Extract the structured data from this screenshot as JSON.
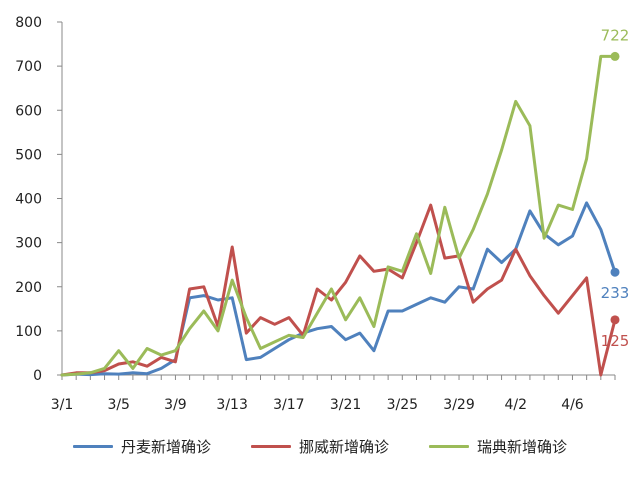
{
  "chart_data": {
    "type": "line",
    "title": "",
    "xlabel": "",
    "ylabel": "",
    "ylim": [
      0,
      800
    ],
    "yticks": [
      0,
      100,
      200,
      300,
      400,
      500,
      600,
      700,
      800
    ],
    "grid": false,
    "legend_position": "bottom",
    "x": [
      "3/1",
      "3/2",
      "3/3",
      "3/4",
      "3/5",
      "3/6",
      "3/7",
      "3/8",
      "3/9",
      "3/10",
      "3/11",
      "3/12",
      "3/13",
      "3/14",
      "3/15",
      "3/16",
      "3/17",
      "3/18",
      "3/19",
      "3/20",
      "3/21",
      "3/22",
      "3/23",
      "3/24",
      "3/25",
      "3/26",
      "3/27",
      "3/28",
      "3/29",
      "3/30",
      "3/31",
      "4/1",
      "4/2",
      "4/3",
      "4/4",
      "4/5",
      "4/6",
      "4/7",
      "4/8",
      "4/9"
    ],
    "xtick_labels": [
      "3/1",
      "3/5",
      "3/9",
      "3/13",
      "3/17",
      "3/21",
      "3/25",
      "3/29",
      "4/2",
      "4/6"
    ],
    "series": [
      {
        "name": "丹麦新增确诊",
        "color": "#4f81bd",
        "values": [
          0,
          2,
          1,
          3,
          2,
          5,
          3,
          15,
          35,
          175,
          180,
          170,
          175,
          35,
          40,
          60,
          80,
          95,
          105,
          110,
          80,
          95,
          55,
          145,
          145,
          160,
          175,
          165,
          200,
          195,
          285,
          255,
          285,
          372,
          320,
          295,
          315,
          390,
          330,
          233
        ],
        "end_label": "233"
      },
      {
        "name": "挪威新增确诊",
        "color": "#c0504d",
        "values": [
          0,
          5,
          5,
          10,
          25,
          30,
          20,
          40,
          30,
          195,
          200,
          110,
          290,
          95,
          130,
          115,
          130,
          90,
          195,
          170,
          210,
          270,
          235,
          240,
          220,
          300,
          385,
          265,
          270,
          165,
          195,
          215,
          285,
          225,
          180,
          140,
          180,
          220,
          0,
          125
        ],
        "end_label": "125"
      },
      {
        "name": "瑞典新增确诊",
        "color": "#9bbb59",
        "values": [
          0,
          2,
          5,
          15,
          55,
          15,
          60,
          45,
          55,
          105,
          145,
          100,
          215,
          130,
          60,
          75,
          90,
          85,
          140,
          195,
          125,
          175,
          110,
          245,
          235,
          320,
          230,
          380,
          265,
          330,
          410,
          510,
          620,
          565,
          310,
          385,
          375,
          490,
          722,
          722
        ],
        "end_label": "722"
      }
    ]
  }
}
